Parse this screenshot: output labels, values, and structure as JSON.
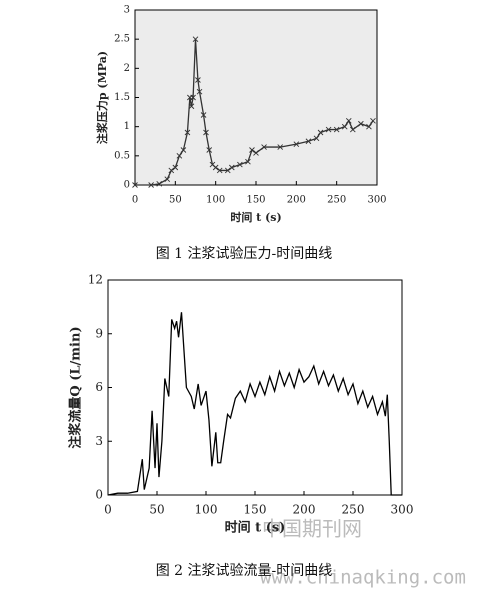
{
  "chart_data": [
    {
      "type": "line",
      "y_label": "注浆压力p (MPa)",
      "x_label": "时间 t (s)",
      "caption": "图 1 注浆试验压力-时间曲线",
      "x": [
        0,
        20,
        30,
        40,
        45,
        50,
        55,
        60,
        65,
        68,
        70,
        72,
        75,
        78,
        80,
        85,
        88,
        92,
        96,
        100,
        105,
        115,
        120,
        130,
        140,
        145,
        150,
        160,
        180,
        200,
        215,
        225,
        230,
        240,
        250,
        260,
        265,
        270,
        280,
        290,
        295
      ],
      "series": [
        {
          "name": "注浆压力",
          "color": "#333333",
          "values": [
            0,
            0,
            0.02,
            0.1,
            0.25,
            0.3,
            0.5,
            0.6,
            0.9,
            1.5,
            1.35,
            1.5,
            2.5,
            1.8,
            1.6,
            1.2,
            0.9,
            0.6,
            0.35,
            0.3,
            0.25,
            0.25,
            0.3,
            0.35,
            0.4,
            0.6,
            0.55,
            0.65,
            0.65,
            0.7,
            0.75,
            0.8,
            0.9,
            0.95,
            0.95,
            1.0,
            1.1,
            0.95,
            1.05,
            1.0,
            1.1
          ]
        }
      ],
      "xlim": [
        0,
        300
      ],
      "xticks": [
        0,
        50,
        100,
        150,
        200,
        250,
        300
      ],
      "ylim": [
        0,
        3
      ],
      "yticks": [
        0,
        0.5,
        1,
        1.5,
        2,
        2.5,
        3
      ],
      "markers": true
    },
    {
      "type": "line",
      "y_label": "注浆流量Q (L/min)",
      "x_label": "时间 t (s)",
      "caption": "图 2 注浆试验流量-时间曲线",
      "x": [
        0,
        10,
        20,
        30,
        35,
        37,
        42,
        45,
        48,
        50,
        52,
        55,
        58,
        62,
        65,
        68,
        70,
        72,
        75,
        77,
        80,
        85,
        88,
        92,
        95,
        100,
        103,
        106,
        110,
        112,
        115,
        118,
        122,
        125,
        130,
        135,
        140,
        145,
        150,
        155,
        160,
        165,
        170,
        175,
        180,
        185,
        190,
        195,
        200,
        205,
        210,
        215,
        220,
        225,
        230,
        235,
        240,
        245,
        250,
        255,
        260,
        265,
        270,
        275,
        280,
        283,
        285,
        287,
        289,
        300
      ],
      "series": [
        {
          "name": "注浆流量",
          "color": "#000000",
          "values": [
            0,
            0.1,
            0.1,
            0.2,
            2,
            0.3,
            1.5,
            4.7,
            1.5,
            4,
            1,
            3,
            6.5,
            5.5,
            9.8,
            9.3,
            9.7,
            8.8,
            10.2,
            8.5,
            6,
            5.5,
            4.8,
            6.2,
            5,
            5.8,
            4.2,
            1.6,
            3.5,
            1.8,
            1.8,
            3,
            4.5,
            4.3,
            5.4,
            5.8,
            5.2,
            6.2,
            5.5,
            6.3,
            5.6,
            6.6,
            5.8,
            6.9,
            6.1,
            6.8,
            6,
            7,
            6.3,
            6.6,
            7.2,
            6.2,
            6.9,
            6.1,
            6.7,
            5.8,
            6.5,
            5.6,
            6.2,
            5.1,
            5.8,
            4.9,
            5.5,
            4.5,
            5.2,
            4.4,
            5.6,
            3,
            0,
            0
          ]
        }
      ],
      "xlim": [
        0,
        300
      ],
      "xticks": [
        0,
        50,
        100,
        150,
        200,
        250,
        300
      ],
      "ylim": [
        0,
        12
      ],
      "yticks": [
        0,
        3,
        6,
        9,
        12
      ],
      "markers": false
    }
  ],
  "watermark": {
    "cn": "中国期刊网",
    "url": "www.chinaqking.com"
  }
}
